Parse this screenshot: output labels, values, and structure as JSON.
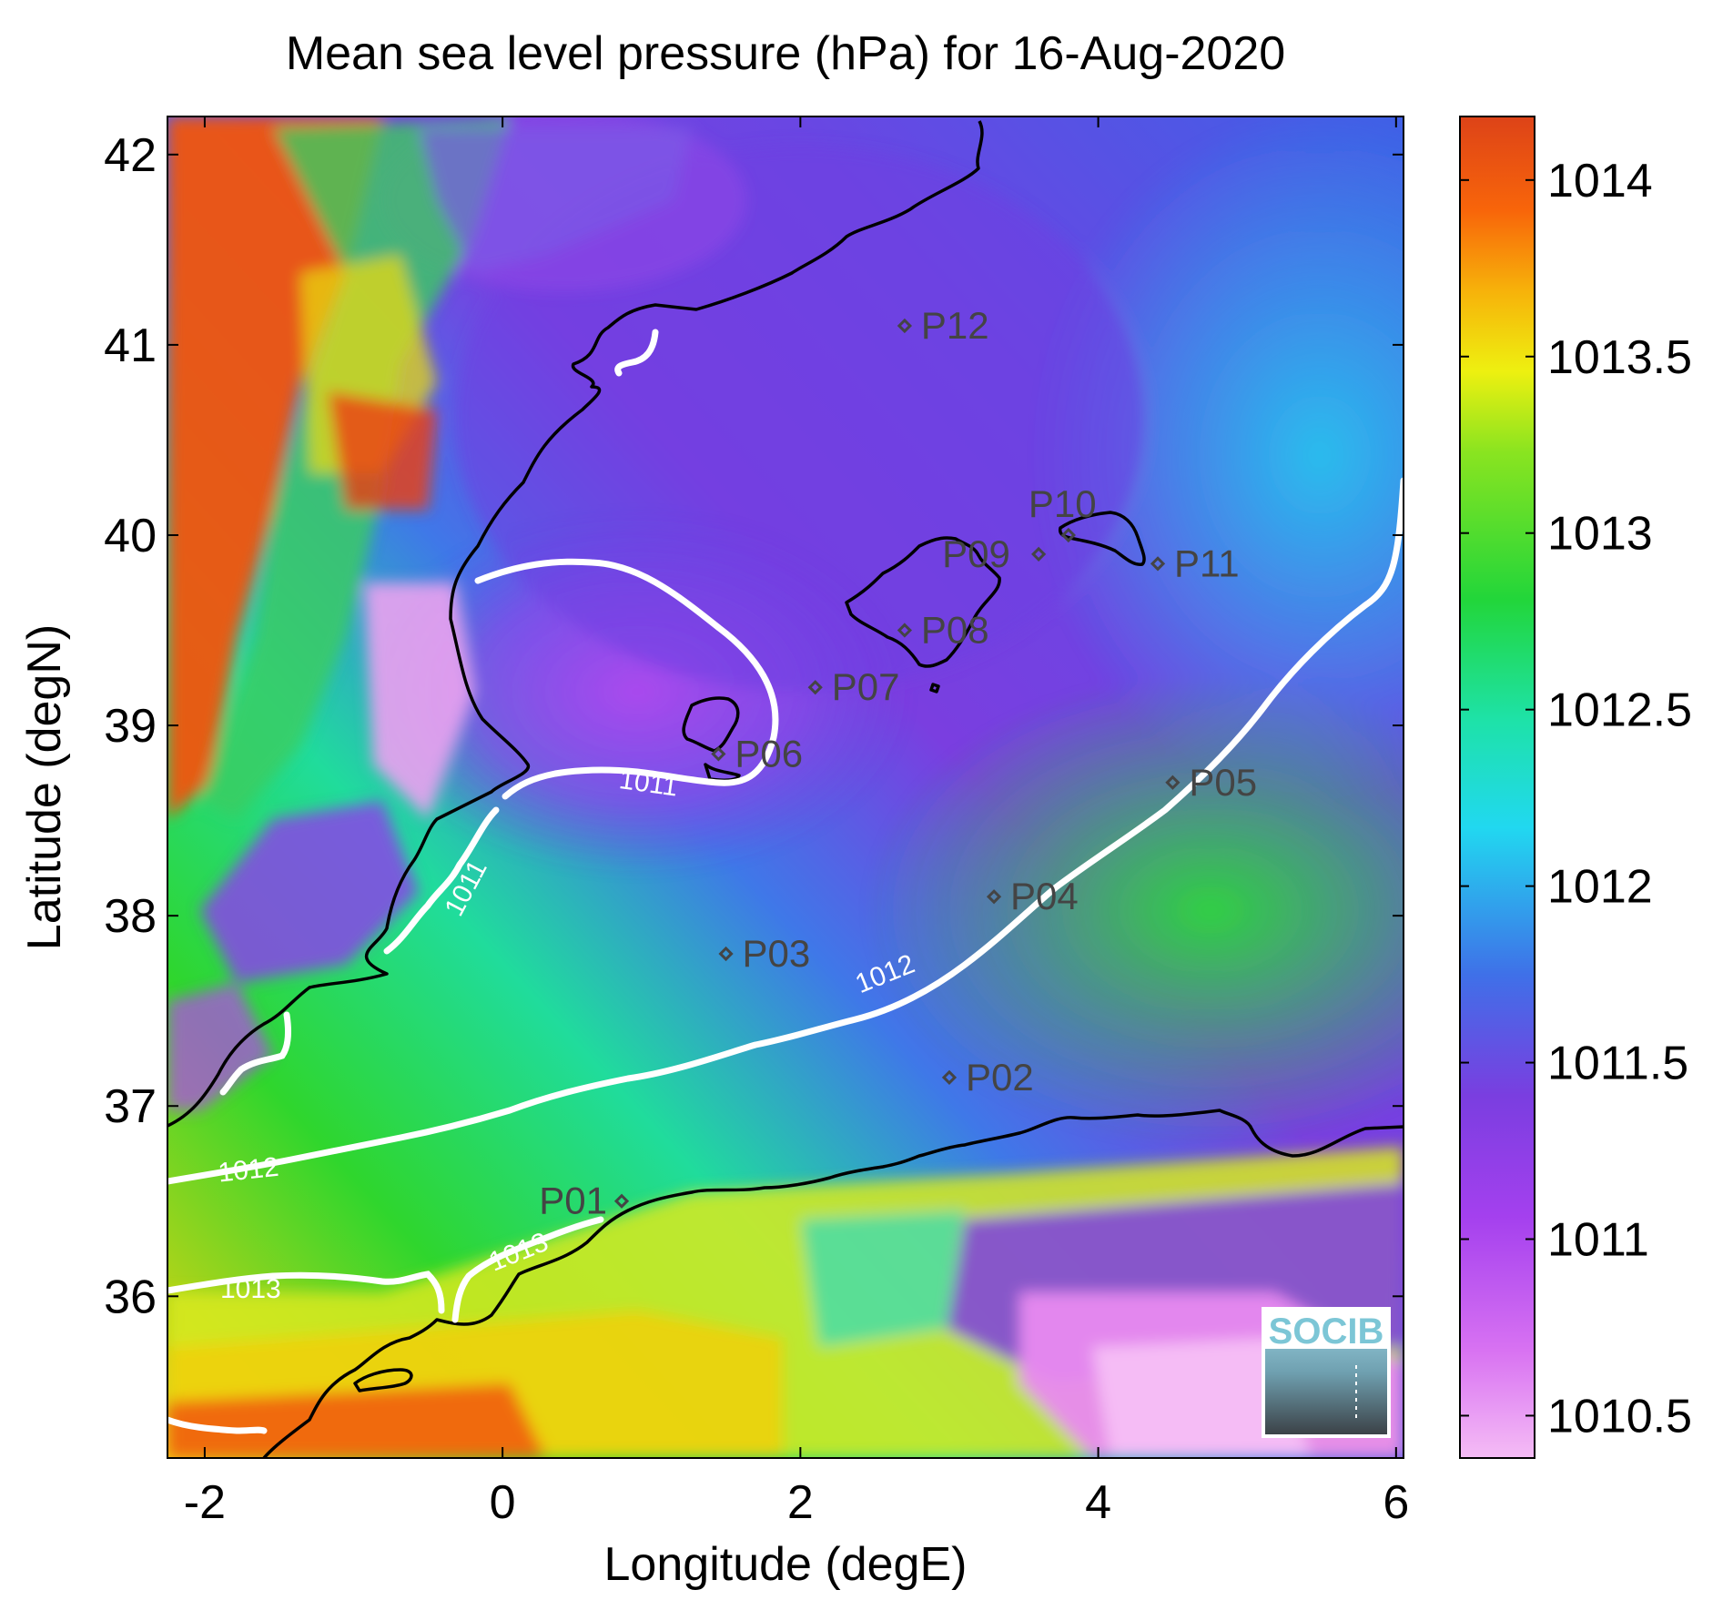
{
  "title": "Mean sea level pressure (hPa) for 16-Aug-2020",
  "xlabel": "Longitude (degE)",
  "ylabel": "Latitude (degN)",
  "map": {
    "xlim": [
      -2.25,
      6.05
    ],
    "ylim": [
      35.15,
      42.2
    ],
    "xticks": [
      -2,
      0,
      2,
      4,
      6
    ],
    "yticks": [
      36,
      37,
      38,
      39,
      40,
      41,
      42
    ],
    "xtick_labels": [
      "-2",
      "0",
      "2",
      "4",
      "6"
    ],
    "ytick_labels": [
      "36",
      "37",
      "38",
      "39",
      "40",
      "41",
      "42"
    ]
  },
  "colorbar": {
    "range": [
      1010.38,
      1014.18
    ],
    "ticks": [
      1010.5,
      1011,
      1011.5,
      1012,
      1012.5,
      1013,
      1013.5,
      1014
    ],
    "tick_labels": [
      "1010.5",
      "1011",
      "1011.5",
      "1012",
      "1012.5",
      "1013",
      "1013.5",
      "1014"
    ],
    "colors": [
      "#f5bcf5",
      "#c145f0",
      "#7a3ee0",
      "#3f78e8",
      "#21d8f0",
      "#1ee28e",
      "#2fd62d",
      "#c3ec1d",
      "#f5c610",
      "#f8650a",
      "#dd4318"
    ]
  },
  "contours": [
    {
      "level": 1011,
      "label": "1011"
    },
    {
      "level": 1012,
      "label": "1012"
    },
    {
      "level": 1013,
      "label": "1013"
    }
  ],
  "stations": [
    {
      "name": "P01",
      "lon": 0.8,
      "lat": 36.5
    },
    {
      "name": "P02",
      "lon": 3.0,
      "lat": 37.15
    },
    {
      "name": "P03",
      "lon": 1.5,
      "lat": 37.8
    },
    {
      "name": "P04",
      "lon": 3.3,
      "lat": 38.1
    },
    {
      "name": "P05",
      "lon": 4.5,
      "lat": 38.7
    },
    {
      "name": "P06",
      "lon": 1.45,
      "lat": 38.85
    },
    {
      "name": "P07",
      "lon": 2.1,
      "lat": 39.2
    },
    {
      "name": "P08",
      "lon": 2.7,
      "lat": 39.5
    },
    {
      "name": "P09",
      "lon": 3.6,
      "lat": 39.9
    },
    {
      "name": "P10",
      "lon": 3.8,
      "lat": 40.0
    },
    {
      "name": "P11",
      "lon": 4.4,
      "lat": 39.85
    },
    {
      "name": "P12",
      "lon": 2.7,
      "lat": 41.1
    }
  ],
  "logo": {
    "text": "SOCIB"
  }
}
